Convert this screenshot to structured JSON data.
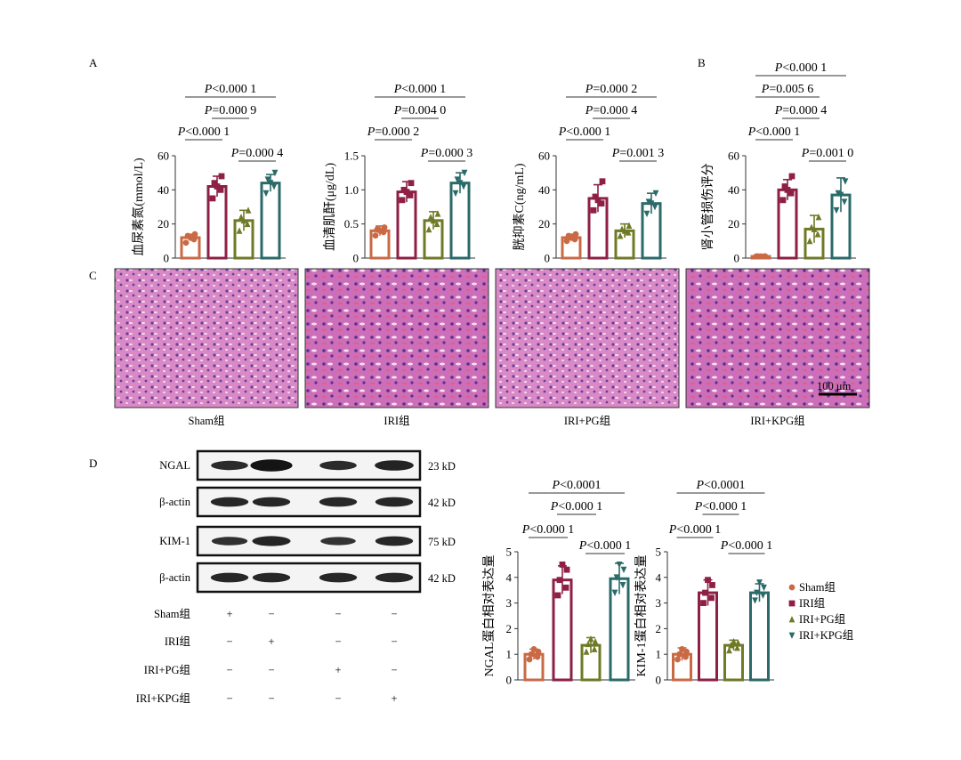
{
  "panels": {
    "A": "A",
    "B": "B",
    "C": "C",
    "D": "D"
  },
  "colors": {
    "sham": "#c96a45",
    "iri": "#8e1f45",
    "iri_pg": "#6f7a26",
    "iri_kpg": "#2a6a68"
  },
  "chart_data": [
    {
      "id": "bun",
      "type": "bar",
      "ylabel": "血尿素氮(mmol/L)",
      "ylim": [
        0,
        60
      ],
      "yticks": [
        "0",
        "20",
        "40",
        "60"
      ],
      "categories": [
        "Sham组",
        "IRI组",
        "IRI+PG组",
        "IRI+KPG组"
      ],
      "values": [
        12,
        42,
        22,
        44
      ],
      "errors": [
        2,
        6,
        6,
        5
      ],
      "points": [
        [
          9,
          11,
          13,
          14,
          12
        ],
        [
          35,
          40,
          44,
          48,
          42
        ],
        [
          16,
          20,
          24,
          28,
          22
        ],
        [
          38,
          42,
          46,
          50,
          44
        ]
      ],
      "comparisons": [
        {
          "p": "<0.000 1",
          "from": 0,
          "to": 1
        },
        {
          "p": "=0.000 4",
          "from": 2,
          "to": 3
        },
        {
          "p": "=0.000 9",
          "from": 1,
          "to": 2
        },
        {
          "p": "<0.000 1",
          "from": 0,
          "to": 3
        }
      ]
    },
    {
      "id": "scr",
      "type": "bar",
      "ylabel": "血清肌酐(μg/dL)",
      "ylim": [
        0,
        1.5
      ],
      "yticks": [
        "0",
        "0.5",
        "1.0",
        "1.5"
      ],
      "categories": [
        "Sham组",
        "IRI组",
        "IRI+PG组",
        "IRI+KPG组"
      ],
      "values": [
        0.4,
        0.97,
        0.55,
        1.1
      ],
      "errors": [
        0.07,
        0.15,
        0.13,
        0.15
      ],
      "points": [
        [
          0.33,
          0.38,
          0.42,
          0.45,
          0.4
        ],
        [
          0.85,
          0.92,
          1.0,
          1.1,
          0.97
        ],
        [
          0.42,
          0.5,
          0.6,
          0.65,
          0.55
        ],
        [
          0.95,
          1.05,
          1.15,
          1.25,
          1.1
        ]
      ],
      "comparisons": [
        {
          "p": "=0.000 2",
          "from": 0,
          "to": 1
        },
        {
          "p": "=0.000 3",
          "from": 2,
          "to": 3
        },
        {
          "p": "=0.004 0",
          "from": 1,
          "to": 2
        },
        {
          "p": "<0.000 1",
          "from": 0,
          "to": 3
        }
      ]
    },
    {
      "id": "cys",
      "type": "bar",
      "ylabel": "胱抑素C(ng/mL)",
      "ylim": [
        0,
        60
      ],
      "yticks": [
        "0",
        "20",
        "40",
        "60"
      ],
      "categories": [
        "Sham组",
        "IRI组",
        "IRI+PG组",
        "IRI+KPG组"
      ],
      "values": [
        12,
        35,
        16,
        32
      ],
      "errors": [
        2,
        8,
        4,
        6
      ],
      "points": [
        [
          10,
          11,
          13,
          14,
          12
        ],
        [
          28,
          32,
          36,
          45,
          34
        ],
        [
          13,
          15,
          17,
          19,
          16
        ],
        [
          26,
          30,
          33,
          38,
          32
        ]
      ],
      "comparisons": [
        {
          "p": "<0.000 1",
          "from": 0,
          "to": 1
        },
        {
          "p": "=0.001 3",
          "from": 2,
          "to": 3
        },
        {
          "p": "=0.000 4",
          "from": 1,
          "to": 2
        },
        {
          "p": "=0.000 2",
          "from": 0,
          "to": 3
        }
      ]
    },
    {
      "id": "injury",
      "type": "bar",
      "ylabel": "肾小管损伤评分",
      "ylim": [
        0,
        60
      ],
      "yticks": [
        "0",
        "20",
        "40",
        "60"
      ],
      "categories": [
        "Sham组",
        "IRI组",
        "IRI+PG组",
        "IRI+KPG组"
      ],
      "values": [
        1,
        40,
        17,
        37
      ],
      "errors": [
        0.5,
        6,
        8,
        10
      ],
      "points": [
        [
          1,
          1,
          1,
          1,
          1
        ],
        [
          34,
          38,
          42,
          48,
          40
        ],
        [
          10,
          14,
          18,
          24,
          17
        ],
        [
          28,
          33,
          38,
          45,
          37
        ]
      ],
      "comparisons": [
        {
          "p": "<0.000 1",
          "from": 0,
          "to": 1
        },
        {
          "p": "=0.001 0",
          "from": 2,
          "to": 3
        },
        {
          "p": "=0.000 4",
          "from": 1,
          "to": 2
        },
        {
          "p": "=0.005 6",
          "from": 0,
          "to": 2
        },
        {
          "p": "<0.000 1",
          "from": 0,
          "to": 3
        }
      ]
    },
    {
      "id": "ngal",
      "type": "bar",
      "ylabel": "NGAL蛋白相对表达量",
      "ylim": [
        0,
        5
      ],
      "yticks": [
        "0",
        "1",
        "2",
        "3",
        "4",
        "5"
      ],
      "categories": [
        "Sham组",
        "IRI组",
        "IRI+PG组",
        "IRI+KPG组"
      ],
      "values": [
        1.0,
        3.9,
        1.35,
        3.95
      ],
      "errors": [
        0.2,
        0.55,
        0.3,
        0.6
      ],
      "points": [
        [
          0.8,
          0.9,
          1.0,
          1.1,
          1.2
        ],
        [
          3.3,
          3.6,
          3.9,
          4.3,
          4.5
        ],
        [
          1.1,
          1.2,
          1.4,
          1.5,
          1.6
        ],
        [
          3.4,
          3.7,
          4.0,
          4.3,
          4.5
        ]
      ],
      "comparisons": [
        {
          "p": "<0.000 1",
          "from": 0,
          "to": 1
        },
        {
          "p": "<0.000 1",
          "from": 2,
          "to": 3
        },
        {
          "p": "<0.000 1",
          "from": 1,
          "to": 2
        },
        {
          "p": "<0.0001",
          "from": 0,
          "to": 3
        }
      ]
    },
    {
      "id": "kim1",
      "type": "bar",
      "ylabel": "KIM-1蛋白相对表达量",
      "ylim": [
        0,
        5
      ],
      "yticks": [
        "0",
        "1",
        "2",
        "3",
        "4",
        "5"
      ],
      "categories": [
        "Sham组",
        "IRI组",
        "IRI+PG组",
        "IRI+KPG组"
      ],
      "values": [
        1.0,
        3.4,
        1.35,
        3.4
      ],
      "errors": [
        0.25,
        0.5,
        0.2,
        0.35
      ],
      "points": [
        [
          0.8,
          0.9,
          1.0,
          1.1,
          1.2
        ],
        [
          3.0,
          3.2,
          3.4,
          3.7,
          3.9
        ],
        [
          1.15,
          1.25,
          1.35,
          1.45,
          1.5
        ],
        [
          3.1,
          3.3,
          3.4,
          3.6,
          3.8
        ]
      ],
      "comparisons": [
        {
          "p": "<0.000 1",
          "from": 0,
          "to": 1
        },
        {
          "p": "<0.000 1",
          "from": 2,
          "to": 3
        },
        {
          "p": "<0.000 1",
          "from": 1,
          "to": 2
        },
        {
          "p": "<0.0001",
          "from": 0,
          "to": 3
        }
      ]
    }
  ],
  "histology": {
    "captions": [
      "Sham组",
      "IRI组",
      "IRI+PG组",
      "IRI+KPG组"
    ],
    "scale_bar": "100 μm"
  },
  "western": {
    "rows": [
      {
        "label": "NGAL",
        "size": "23 kD",
        "intensity": [
          0.55,
          0.95,
          0.55,
          0.7
        ]
      },
      {
        "label": "β-actin",
        "size": "42 kD",
        "intensity": [
          0.6,
          0.6,
          0.6,
          0.6
        ]
      },
      {
        "label": "KIM-1",
        "size": "75 kD",
        "intensity": [
          0.45,
          0.65,
          0.4,
          0.6
        ]
      },
      {
        "label": "β-actin",
        "size": "42 kD",
        "intensity": [
          0.6,
          0.6,
          0.6,
          0.6
        ]
      }
    ],
    "groups": [
      {
        "label": "Sham组",
        "signs": [
          "+",
          "−",
          "−",
          "−"
        ]
      },
      {
        "label": "IRI组",
        "signs": [
          "−",
          "+",
          "−",
          "−"
        ]
      },
      {
        "label": "IRI+PG组",
        "signs": [
          "−",
          "−",
          "+",
          "−"
        ]
      },
      {
        "label": "IRI+KPG组",
        "signs": [
          "−",
          "−",
          "−",
          "+"
        ]
      }
    ]
  },
  "legend": [
    "Sham组",
    "IRI组",
    "IRI+PG组",
    "IRI+KPG组"
  ]
}
